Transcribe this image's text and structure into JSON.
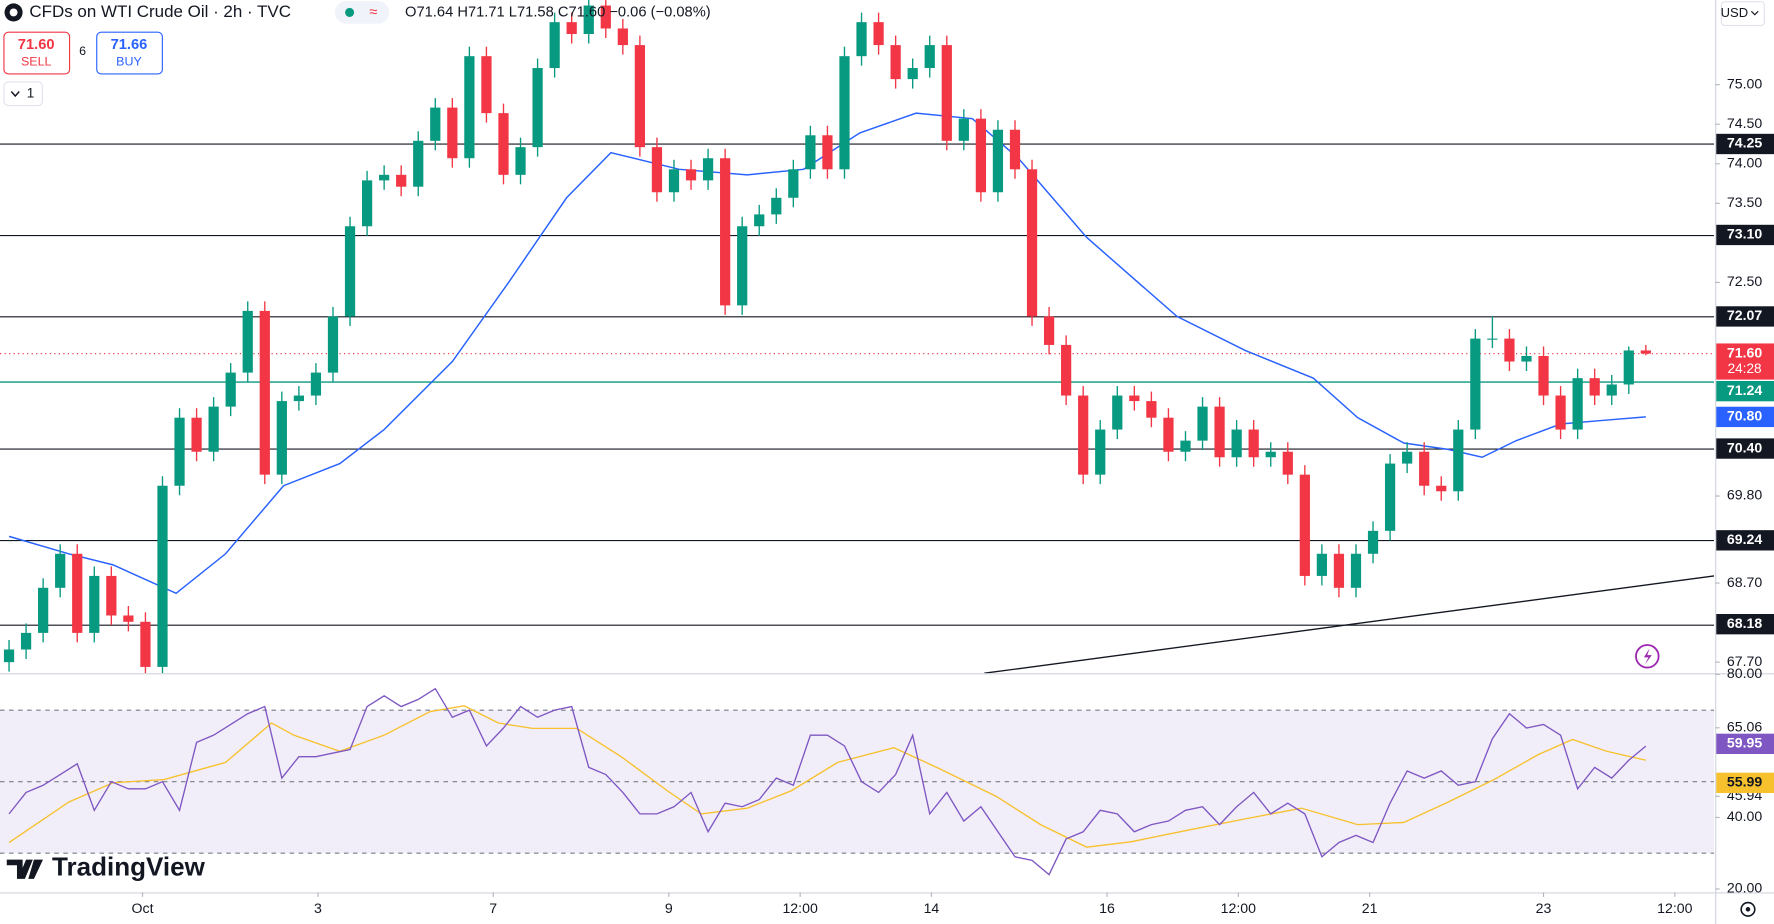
{
  "toolbar": {
    "sell_price": "71.60",
    "sell": "SELL",
    "spread": "6",
    "buy_price": "71.66",
    "buy": "BUY",
    "interval": "1"
  },
  "branding": "TradingView",
  "chart_data": [
    {
      "type": "candlestick",
      "title": "CFDs on WTI Crude Oil · 2h · TVC",
      "subtitle": "O71.64 H71.71 L71.58 C71.60 −0.06 (−0.08%)",
      "currency": "USD",
      "colors": {
        "up": "#089981",
        "down": "#f23645"
      },
      "grid": false,
      "x": [
        0,
        1,
        2,
        3,
        4,
        5,
        6,
        7,
        8,
        9,
        10,
        11,
        12,
        13,
        14,
        15,
        16,
        17,
        18,
        19,
        20,
        21,
        22,
        23,
        24,
        25,
        26,
        27,
        28,
        29,
        30,
        31,
        32,
        33,
        34,
        35,
        36,
        37,
        38,
        39,
        40,
        41,
        42,
        43,
        44,
        45,
        46,
        47,
        48,
        49,
        50,
        51,
        52,
        53,
        54,
        55,
        56,
        57,
        58,
        59,
        60,
        61,
        62,
        63,
        64,
        65,
        66,
        67,
        68,
        69,
        70,
        71,
        72,
        73,
        74,
        75,
        76,
        77,
        78,
        79,
        80,
        81,
        82,
        83,
        84,
        85,
        86,
        87,
        88,
        89,
        90,
        91,
        92,
        93,
        94,
        95,
        96
      ],
      "candles": [
        [
          67.7,
          67.98,
          67.58,
          67.86
        ],
        [
          67.86,
          68.19,
          67.74,
          68.07
        ],
        [
          68.07,
          68.76,
          67.95,
          68.64
        ],
        [
          68.64,
          69.19,
          68.52,
          69.07
        ],
        [
          69.07,
          69.19,
          67.95,
          68.07
        ],
        [
          68.07,
          68.91,
          67.95,
          68.79
        ],
        [
          68.79,
          68.91,
          68.17,
          68.29
        ],
        [
          68.29,
          68.41,
          68.09,
          68.21
        ],
        [
          68.21,
          68.33,
          67.52,
          67.64
        ],
        [
          67.64,
          70.05,
          67.52,
          69.93
        ],
        [
          69.93,
          70.91,
          69.81,
          70.79
        ],
        [
          70.79,
          70.91,
          70.24,
          70.36
        ],
        [
          70.36,
          71.05,
          70.24,
          70.93
        ],
        [
          70.93,
          71.48,
          70.81,
          71.36
        ],
        [
          71.36,
          72.26,
          71.24,
          72.14
        ],
        [
          72.14,
          72.26,
          69.95,
          70.07
        ],
        [
          70.07,
          71.12,
          69.95,
          71.0
        ],
        [
          71.0,
          71.19,
          70.88,
          71.07
        ],
        [
          71.07,
          71.48,
          70.95,
          71.36
        ],
        [
          71.36,
          72.19,
          71.24,
          72.07
        ],
        [
          72.07,
          73.33,
          71.95,
          73.21
        ],
        [
          73.21,
          73.91,
          73.09,
          73.79
        ],
        [
          73.79,
          73.98,
          73.67,
          73.86
        ],
        [
          73.86,
          73.98,
          73.59,
          73.71
        ],
        [
          73.71,
          74.41,
          73.59,
          74.29
        ],
        [
          74.29,
          74.83,
          74.17,
          74.71
        ],
        [
          74.71,
          74.83,
          73.95,
          74.07
        ],
        [
          74.07,
          75.48,
          73.95,
          75.36
        ],
        [
          75.36,
          75.48,
          74.52,
          74.64
        ],
        [
          74.64,
          74.76,
          73.74,
          73.86
        ],
        [
          73.86,
          74.33,
          73.74,
          74.21
        ],
        [
          74.21,
          75.33,
          74.09,
          75.21
        ],
        [
          75.21,
          75.91,
          75.09,
          75.79
        ],
        [
          75.79,
          75.91,
          75.52,
          75.64
        ],
        [
          75.64,
          76.12,
          75.52,
          76.0
        ],
        [
          76.0,
          76.12,
          75.59,
          75.71
        ],
        [
          75.71,
          75.83,
          75.38,
          75.5
        ],
        [
          75.5,
          75.62,
          74.09,
          74.21
        ],
        [
          74.21,
          74.33,
          73.52,
          73.64
        ],
        [
          73.64,
          74.05,
          73.52,
          73.93
        ],
        [
          73.93,
          74.05,
          73.67,
          73.79
        ],
        [
          73.79,
          74.19,
          73.67,
          74.07
        ],
        [
          74.07,
          74.19,
          72.09,
          72.21
        ],
        [
          72.21,
          73.33,
          72.09,
          73.21
        ],
        [
          73.21,
          73.48,
          73.09,
          73.36
        ],
        [
          73.36,
          73.69,
          73.24,
          73.57
        ],
        [
          73.57,
          74.05,
          73.45,
          73.93
        ],
        [
          73.93,
          74.48,
          73.81,
          74.36
        ],
        [
          74.36,
          74.48,
          73.81,
          73.93
        ],
        [
          73.93,
          75.48,
          73.81,
          75.36
        ],
        [
          75.36,
          75.91,
          75.24,
          75.79
        ],
        [
          75.79,
          75.91,
          75.38,
          75.5
        ],
        [
          75.5,
          75.62,
          74.95,
          75.07
        ],
        [
          75.07,
          75.33,
          74.95,
          75.21
        ],
        [
          75.21,
          75.62,
          75.09,
          75.5
        ],
        [
          75.5,
          75.62,
          74.17,
          74.29
        ],
        [
          74.29,
          74.69,
          74.17,
          74.57
        ],
        [
          74.57,
          74.69,
          73.52,
          73.64
        ],
        [
          73.64,
          74.55,
          73.52,
          74.43
        ],
        [
          74.43,
          74.55,
          73.81,
          73.93
        ],
        [
          73.93,
          74.05,
          71.95,
          72.07
        ],
        [
          72.07,
          72.19,
          71.59,
          71.71
        ],
        [
          71.71,
          71.83,
          70.95,
          71.07
        ],
        [
          71.07,
          71.19,
          69.95,
          70.07
        ],
        [
          70.07,
          70.76,
          69.95,
          70.64
        ],
        [
          70.64,
          71.19,
          70.52,
          71.07
        ],
        [
          71.07,
          71.19,
          70.88,
          71.0
        ],
        [
          71.0,
          71.12,
          70.67,
          70.79
        ],
        [
          70.79,
          70.91,
          70.24,
          70.36
        ],
        [
          70.36,
          70.62,
          70.24,
          70.5
        ],
        [
          70.5,
          71.05,
          70.38,
          70.93
        ],
        [
          70.93,
          71.05,
          70.17,
          70.29
        ],
        [
          70.29,
          70.76,
          70.17,
          70.64
        ],
        [
          70.64,
          70.76,
          70.17,
          70.29
        ],
        [
          70.29,
          70.48,
          70.17,
          70.36
        ],
        [
          70.36,
          70.48,
          69.95,
          70.07
        ],
        [
          70.07,
          70.19,
          68.67,
          68.79
        ],
        [
          68.79,
          69.19,
          68.67,
          69.07
        ],
        [
          69.07,
          69.19,
          68.52,
          68.64
        ],
        [
          68.64,
          69.19,
          68.52,
          69.07
        ],
        [
          69.07,
          69.48,
          68.95,
          69.36
        ],
        [
          69.36,
          70.33,
          69.24,
          70.21
        ],
        [
          70.21,
          70.48,
          70.09,
          70.36
        ],
        [
          70.36,
          70.48,
          69.81,
          69.93
        ],
        [
          69.93,
          70.05,
          69.74,
          69.86
        ],
        [
          69.86,
          70.76,
          69.74,
          70.64
        ],
        [
          70.64,
          71.91,
          70.52,
          71.79
        ],
        [
          71.79,
          72.07,
          71.67,
          71.79
        ],
        [
          71.79,
          71.91,
          71.38,
          71.5
        ],
        [
          71.5,
          71.69,
          71.38,
          71.57
        ],
        [
          71.57,
          71.69,
          70.95,
          71.07
        ],
        [
          71.07,
          71.19,
          70.52,
          70.64
        ],
        [
          70.64,
          71.41,
          70.52,
          71.29
        ],
        [
          71.29,
          71.41,
          70.95,
          71.07
        ],
        [
          71.07,
          71.33,
          70.95,
          71.21
        ],
        [
          71.21,
          71.69,
          71.09,
          71.64
        ],
        [
          71.64,
          71.71,
          71.58,
          71.6
        ]
      ],
      "ma": {
        "color": "#2962ff",
        "last_label": "70.80",
        "x": [
          0,
          3.5,
          6.1,
          9.8,
          12.7,
          16.1,
          19.4,
          22.0,
          26.0,
          29.3,
          32.7,
          35.3,
          39.3,
          43.3,
          46.6,
          49.9,
          53.2,
          56.5,
          59.2,
          63.2,
          68.5,
          72.5,
          76.5,
          79.1,
          81.8,
          84.4,
          86.4,
          88.4,
          91.0,
          93.7,
          96.0
        ],
        "values": [
          69.29,
          69.07,
          68.93,
          68.57,
          69.07,
          69.93,
          70.21,
          70.64,
          71.5,
          72.5,
          73.57,
          74.14,
          73.93,
          73.86,
          73.93,
          74.39,
          74.64,
          74.57,
          74.07,
          73.07,
          72.07,
          71.64,
          71.29,
          70.79,
          70.47,
          70.39,
          70.29,
          70.5,
          70.71,
          70.76,
          70.8
        ]
      },
      "trendline": {
        "color": "#131722",
        "x": [
          57.2,
          100
        ],
        "values": [
          67.56,
          68.79
        ]
      },
      "levels": [
        {
          "value": 74.25,
          "label": "74.25"
        },
        {
          "value": 73.1,
          "label": "73.10"
        },
        {
          "value": 72.07,
          "label": "72.07"
        },
        {
          "value": 70.4,
          "label": "70.40"
        },
        {
          "value": 69.24,
          "label": "69.24"
        },
        {
          "value": 68.18,
          "label": "68.18"
        }
      ],
      "level_color": "#131722",
      "support": {
        "value": 71.24,
        "label": "71.24",
        "color": "#089981"
      },
      "last_price": {
        "value": 71.6,
        "label": "71.60",
        "countdown": "24:28",
        "color": "#f23645"
      },
      "xlim": [
        -0.53,
        100
      ],
      "xticks": [
        {
          "value": 7.83,
          "label": "Oct"
        },
        {
          "value": 18.12,
          "label": "3"
        },
        {
          "value": 28.4,
          "label": "7"
        },
        {
          "value": 38.7,
          "label": "9"
        },
        {
          "value": 46.4,
          "label": "12:00"
        },
        {
          "value": 54.1,
          "label": "14"
        },
        {
          "value": 64.4,
          "label": "16"
        },
        {
          "value": 72.1,
          "label": "12:00"
        },
        {
          "value": 79.8,
          "label": "21"
        },
        {
          "value": 90.0,
          "label": "23"
        },
        {
          "value": 97.7,
          "label": "12:00"
        }
      ],
      "ylim": [
        67.56,
        76.07
      ],
      "yticks": [
        {
          "value": 75,
          "label": "75.00"
        },
        {
          "value": 74.5,
          "label": "74.50"
        },
        {
          "value": 74,
          "label": "74.00"
        },
        {
          "value": 73.5,
          "label": "73.50"
        },
        {
          "value": 72.5,
          "label": "72.50"
        },
        {
          "value": 69.8,
          "label": "69.80"
        },
        {
          "value": 68.7,
          "label": "68.70"
        },
        {
          "value": 67.7,
          "label": "67.70"
        }
      ]
    },
    {
      "type": "line",
      "xlim": [
        -0.53,
        100
      ],
      "ylim": [
        19.06,
        80
      ],
      "yticks": [
        {
          "value": 80,
          "label": "80.00"
        },
        {
          "value": 65.06,
          "label": "65.06"
        },
        {
          "value": 45.94,
          "label": "45.94"
        },
        {
          "value": 40,
          "label": "40.00"
        },
        {
          "value": 20,
          "label": "20.00"
        }
      ],
      "bands": [
        70,
        50,
        30
      ],
      "band_color": "#7e57c2",
      "series": [
        {
          "color": "#7e57c2",
          "last_label": "59.95",
          "x": [
            0,
            1,
            2,
            3,
            4,
            5,
            6,
            7,
            8,
            9,
            10,
            11,
            12,
            13,
            14,
            15,
            16,
            17,
            18,
            19,
            20,
            21,
            22,
            23,
            24,
            25,
            26,
            27,
            28,
            29,
            30,
            31,
            32,
            33,
            34,
            35,
            36,
            37,
            38,
            39,
            40,
            41,
            42,
            43,
            44,
            45,
            46,
            47,
            48,
            49,
            50,
            51,
            52,
            53,
            54,
            55,
            56,
            57,
            58,
            59,
            60,
            61,
            62,
            63,
            64,
            65,
            66,
            67,
            68,
            69,
            70,
            71,
            72,
            73,
            74,
            75,
            76,
            77,
            78,
            79,
            80,
            81,
            82,
            83,
            84,
            85,
            86,
            87,
            88,
            89,
            90,
            91,
            92,
            93,
            94,
            95,
            96
          ],
          "values": [
            41,
            47,
            49,
            52,
            55,
            42,
            50,
            48,
            48,
            50,
            42,
            61,
            63,
            66,
            69,
            71,
            51,
            57,
            57,
            58,
            59,
            71,
            74,
            71,
            73,
            76,
            68,
            70,
            60,
            65,
            71,
            68,
            70,
            71,
            54,
            52,
            47,
            41,
            41,
            43,
            47,
            36,
            44,
            43,
            45,
            51,
            49,
            63,
            63,
            60,
            50,
            47,
            52,
            63,
            41,
            47,
            39,
            43,
            36,
            29,
            28,
            24,
            34,
            36,
            42,
            41,
            36,
            38,
            39,
            42,
            43,
            38,
            43,
            47,
            41,
            44,
            41,
            29,
            33,
            35,
            33,
            44,
            53,
            51,
            53,
            49,
            50,
            62,
            69,
            65,
            66,
            63,
            48,
            54,
            51,
            56,
            59.95
          ]
        },
        {
          "color": "#f7c12d",
          "last_label": "55.99",
          "x": [
            0,
            3.5,
            6.1,
            9.1,
            12.7,
            15.4,
            16.7,
            19.4,
            22.0,
            24.7,
            26.7,
            28.7,
            30.7,
            33.3,
            35.9,
            38.6,
            40.6,
            43.3,
            45.9,
            48.6,
            51.9,
            54.5,
            57.9,
            60.5,
            63.2,
            65.8,
            69.1,
            72.5,
            75.8,
            79.1,
            81.8,
            84.4,
            87.1,
            89.7,
            91.7,
            93.7,
            96.0
          ],
          "values": [
            33,
            44.3,
            49.7,
            50.6,
            55.4,
            66.4,
            63,
            58.5,
            63,
            69.6,
            71.2,
            66.4,
            64.9,
            64.9,
            57,
            47.5,
            41,
            42.6,
            47.5,
            55.4,
            59.5,
            53.8,
            45.9,
            38,
            31.7,
            33.2,
            36.4,
            39.6,
            42.6,
            38,
            38.6,
            44.3,
            50.6,
            57.6,
            61.8,
            58.5,
            55.99
          ]
        }
      ]
    }
  ]
}
